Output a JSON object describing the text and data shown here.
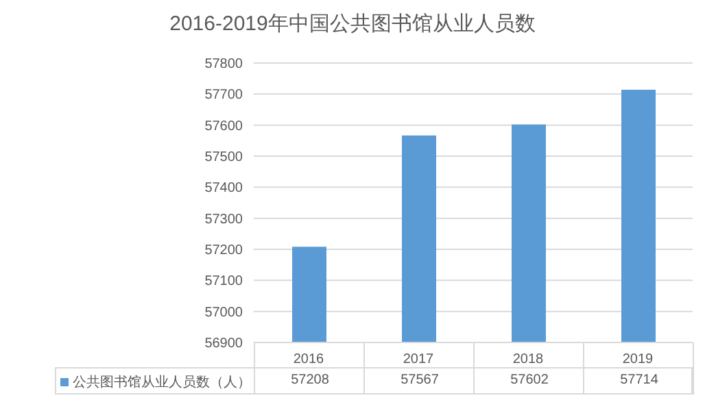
{
  "chart_data": {
    "type": "bar",
    "title": "2016-2019年中国公共图书馆从业人员数",
    "categories": [
      "2016",
      "2017",
      "2018",
      "2019"
    ],
    "series": [
      {
        "name": "公共图书馆从业人员数（人）",
        "color": "#5b9bd5",
        "values": [
          57208,
          57567,
          57602,
          57714
        ]
      }
    ],
    "ylim": [
      56900,
      57800
    ],
    "yticks": [
      56900,
      57000,
      57100,
      57200,
      57300,
      57400,
      57500,
      57600,
      57700,
      57800
    ],
    "grid": "y",
    "data_labels": true
  }
}
